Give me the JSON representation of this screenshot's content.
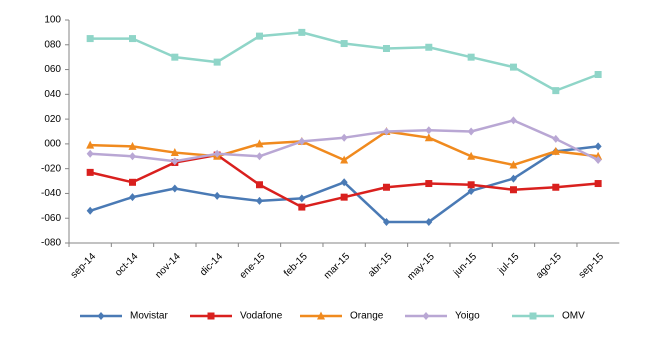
{
  "chart_data": {
    "type": "line",
    "categories": [
      "sep-14",
      "oct-14",
      "nov-14",
      "dic-14",
      "ene-15",
      "feb-15",
      "mar-15",
      "abr-15",
      "may-15",
      "jun-15",
      "jul-15",
      "ago-15",
      "sep-15"
    ],
    "series": [
      {
        "name": "Movistar",
        "color": "#4a7ab5",
        "marker": "diamond",
        "values": [
          -54,
          -43,
          -36,
          -42,
          -46,
          -44,
          -31,
          -63,
          -63,
          -38,
          -28,
          -6,
          -2
        ]
      },
      {
        "name": "Vodafone",
        "color": "#d9201e",
        "marker": "square",
        "values": [
          -23,
          -31,
          -15,
          -9,
          -33,
          -51,
          -43,
          -35,
          -32,
          -33,
          -37,
          -35,
          -32
        ]
      },
      {
        "name": "Orange",
        "color": "#f08a1e",
        "marker": "triangle",
        "values": [
          -1,
          -2,
          -7,
          -10,
          0,
          2,
          -13,
          10,
          5,
          -10,
          -17,
          -6,
          -10
        ]
      },
      {
        "name": "Yoigo",
        "color": "#b9a7d4",
        "marker": "diamond",
        "values": [
          -8,
          -10,
          -14,
          -8,
          -10,
          2,
          5,
          10,
          11,
          10,
          19,
          4,
          -13
        ]
      },
      {
        "name": "OMV",
        "color": "#8fd5c8",
        "marker": "square",
        "values": [
          85,
          85,
          70,
          66,
          87,
          90,
          81,
          77,
          78,
          70,
          62,
          43,
          56
        ]
      }
    ],
    "ylim": [
      -80,
      100
    ],
    "yticks": [
      100,
      {
        "value": 80,
        "label": "080"
      },
      {
        "value": 60,
        "label": "060"
      },
      {
        "value": 40,
        "label": "040"
      },
      {
        "value": 20,
        "label": "020"
      },
      {
        "value": 0,
        "label": "000"
      },
      {
        "value": -20,
        "label": "-020"
      },
      {
        "value": -40,
        "label": "-040"
      },
      {
        "value": -60,
        "label": "-060"
      },
      {
        "value": -80,
        "label": "-080"
      }
    ],
    "grid": false,
    "legend": "bottom"
  }
}
